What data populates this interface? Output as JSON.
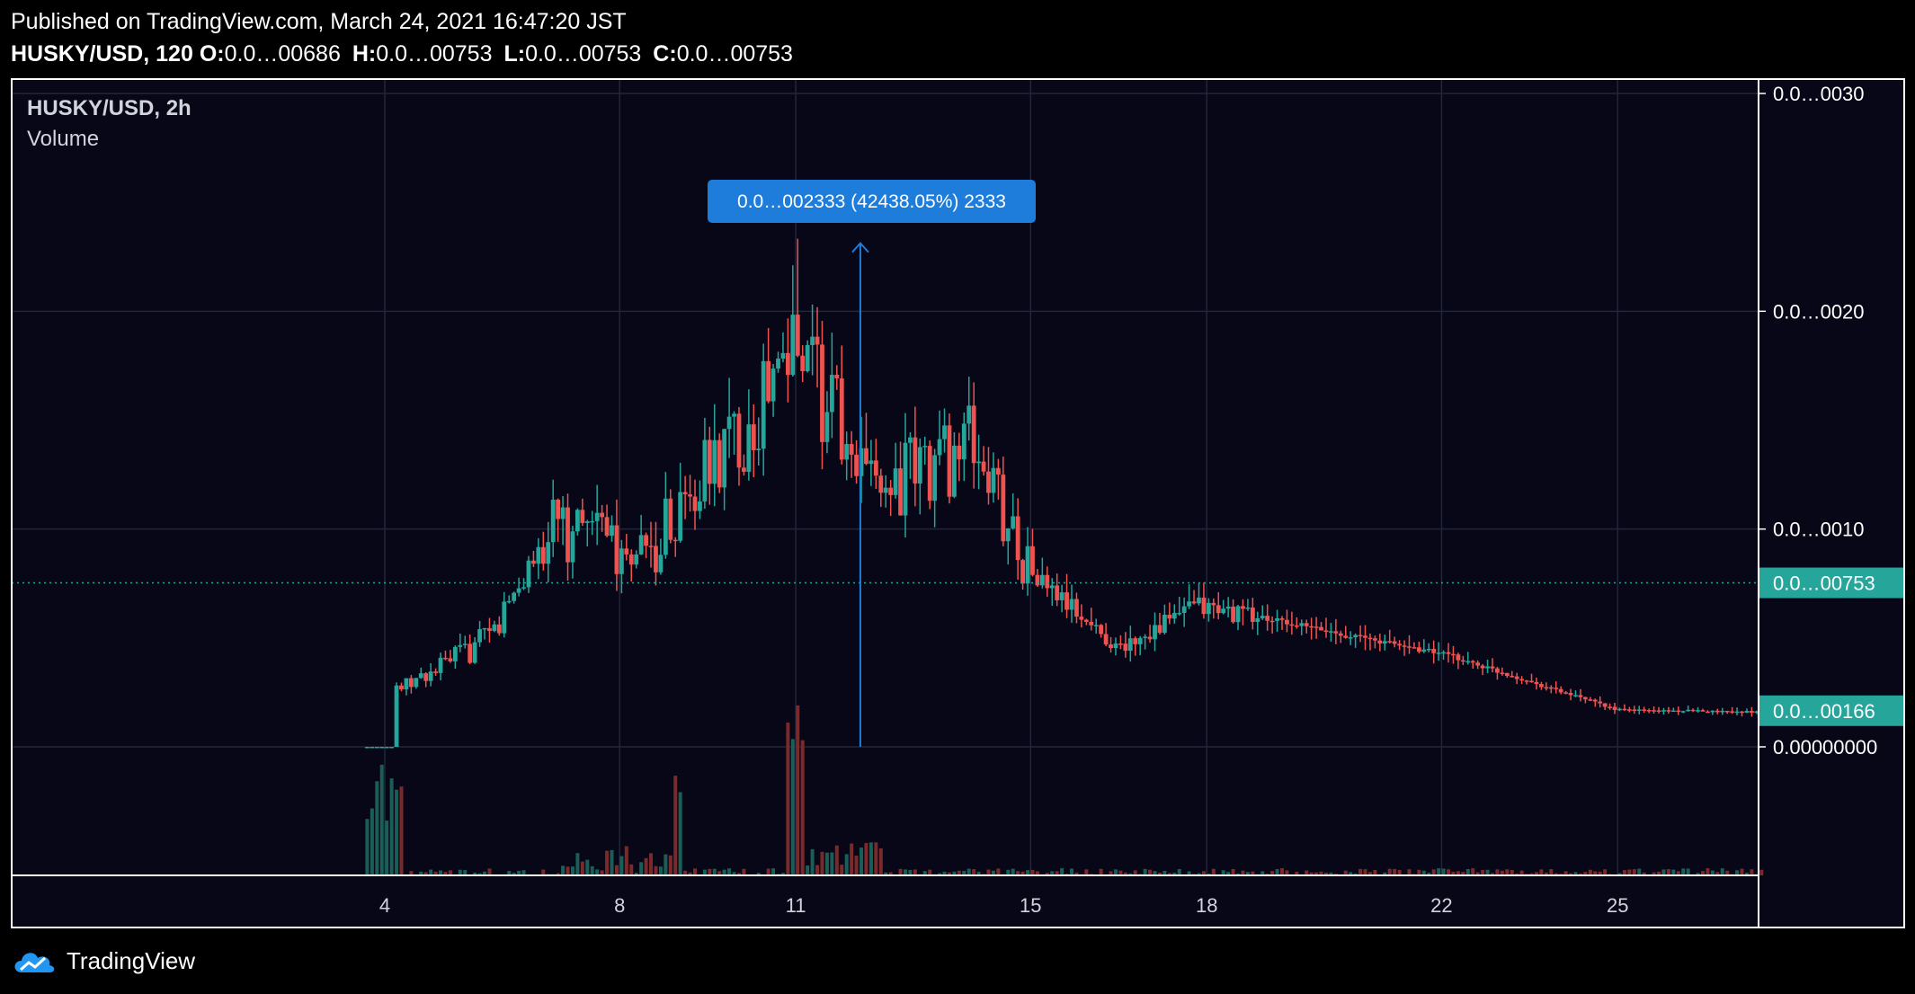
{
  "header": {
    "published": "Published on TradingView.com, March 24, 2021 16:47:20 JST",
    "symbol_interval": "HUSKY/USD, 120",
    "ohlc": [
      {
        "label": "O:",
        "value": "0.0…00686"
      },
      {
        "label": "H:",
        "value": "0.0…00753"
      },
      {
        "label": "L:",
        "value": "0.0…00753"
      },
      {
        "label": "C:",
        "value": "0.0…00753"
      }
    ]
  },
  "legend": {
    "symbol": "HUSKY/USD, 2h",
    "volume": "Volume"
  },
  "annotation": {
    "label": "0.0…002333 (42438.05%) 2333",
    "color": "#1e7ddb"
  },
  "colors": {
    "background": "#070718",
    "up": "#26a69a",
    "down": "#ef5350",
    "grid": "#23263a",
    "last_price_badge": "#26a69a"
  },
  "chart_data": {
    "type": "candlestick",
    "symbol": "HUSKY/USD",
    "interval": "2h",
    "x_tick_labels": [
      "4",
      "8",
      "11",
      "15",
      "18",
      "22",
      "25"
    ],
    "y_tick_labels": [
      {
        "value": 0.0,
        "label": "0.00000000"
      },
      {
        "value": 0.001,
        "label": "0.0…0010"
      },
      {
        "value": 0.002,
        "label": "0.0…0020"
      },
      {
        "value": 0.003,
        "label": "0.0…0030"
      }
    ],
    "ylim": [
      0,
      0.003
    ],
    "price_badges": [
      {
        "value": 0.000753,
        "label": "0.0…00753"
      },
      {
        "value": 0.000166,
        "label": "0.0…00166"
      }
    ],
    "last_price": 0.000753,
    "grid": true,
    "series_anchor_points": [
      {
        "x": 3.7,
        "y": 0.0
      },
      {
        "x": 4.2,
        "y": 0.00025
      },
      {
        "x": 5.8,
        "y": 0.0005
      },
      {
        "x": 6.8,
        "y": 0.001
      },
      {
        "x": 8.5,
        "y": 0.0009
      },
      {
        "x": 11.0,
        "y": 0.0018
      },
      {
        "x": 12.5,
        "y": 0.0012
      },
      {
        "x": 14.0,
        "y": 0.0014
      },
      {
        "x": 15.0,
        "y": 0.0008
      },
      {
        "x": 16.5,
        "y": 0.00045
      },
      {
        "x": 17.8,
        "y": 0.00065
      },
      {
        "x": 22.0,
        "y": 0.00043
      },
      {
        "x": 25.0,
        "y": 0.00017
      },
      {
        "x": 27.5,
        "y": 0.00016
      }
    ],
    "peak": {
      "x": 11.0,
      "high": 0.002333
    }
  },
  "footer": {
    "brand": "TradingView"
  }
}
